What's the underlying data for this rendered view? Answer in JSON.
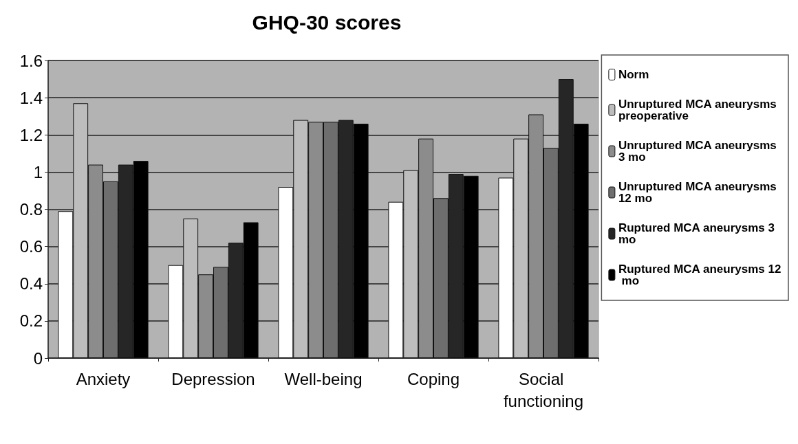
{
  "chart_data": {
    "type": "bar",
    "title": "GHQ-30 scores",
    "categories": [
      "Anxiety",
      "Depression",
      "Well-being",
      "Coping",
      "Social functioning"
    ],
    "series": [
      {
        "name": "Norm",
        "color": "#ffffff",
        "values": [
          0.79,
          0.5,
          0.92,
          0.84,
          0.97
        ]
      },
      {
        "name": "Unruptured MCA aneurysms preoperative",
        "color": "#bdbdbd",
        "values": [
          1.37,
          0.75,
          1.28,
          1.01,
          1.18
        ]
      },
      {
        "name": "Unruptured MCA aneurysms 3 mo",
        "color": "#8c8c8c",
        "values": [
          1.04,
          0.45,
          1.27,
          1.18,
          1.31
        ]
      },
      {
        "name": "Unruptured MCA aneurysms 12 mo",
        "color": "#6e6e6e",
        "values": [
          0.95,
          0.49,
          1.27,
          0.86,
          1.13
        ]
      },
      {
        "name": "Ruptured MCA aneurysms 3 mo",
        "color": "#262626",
        "values": [
          1.04,
          0.62,
          1.28,
          0.99,
          1.5
        ]
      },
      {
        "name": "Ruptured MCA aneurysms 12 mo",
        "color": "#000000",
        "values": [
          1.06,
          0.73,
          1.26,
          0.98,
          1.26
        ]
      }
    ],
    "ylim": [
      0,
      1.6
    ],
    "yticks": [
      0,
      0.2,
      0.4,
      0.6,
      0.8,
      1,
      1.2,
      1.4,
      1.6
    ],
    "grid": "y",
    "legend": "right"
  }
}
